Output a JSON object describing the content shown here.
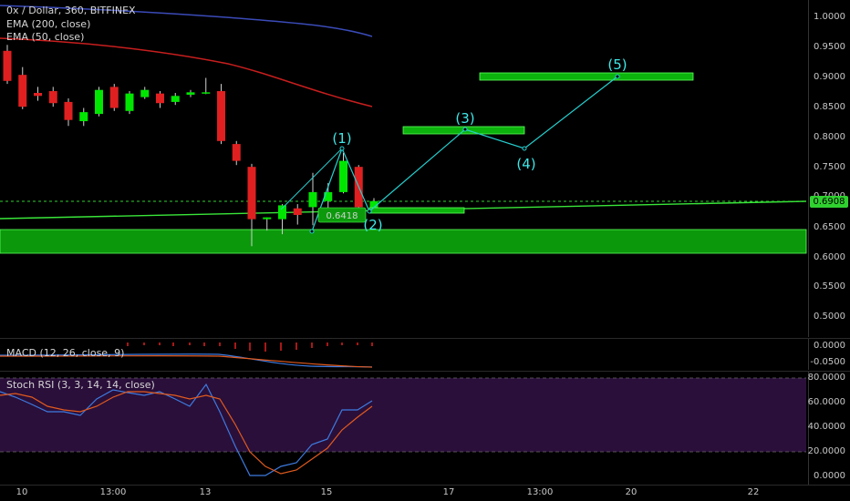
{
  "header": {
    "symbol_line": "0x / Dollar, 360, BITFINEX",
    "ema200_label": "EMA (200, close)",
    "ema50_label": "EMA (50, close)"
  },
  "price_axis": {
    "ticks": [
      "1.0000",
      "0.9500",
      "0.9000",
      "0.8500",
      "0.8000",
      "0.7500",
      "0.7000",
      "0.6500",
      "0.6000",
      "0.5500",
      "0.5000"
    ],
    "current_price": "0.6908"
  },
  "macd": {
    "label": "MACD (12, 26, close, 9)",
    "ticks": [
      "0.0000",
      "-0.0500"
    ]
  },
  "stoch": {
    "label": "Stoch RSI (3, 3, 14, 14, close)",
    "ticks": [
      "80.0000",
      "60.0000",
      "40.0000",
      "20.0000",
      "0.0000"
    ]
  },
  "time_axis": {
    "ticks": [
      "10",
      "13:00",
      "13",
      "15",
      "17",
      "13:00",
      "20",
      "22"
    ]
  },
  "annotations": {
    "wave_labels": [
      "(1)",
      "(2)",
      "(3)",
      "(4)",
      "(5)"
    ],
    "price_tag": "0.6418"
  },
  "colors": {
    "background": "#000000",
    "bull": "#00e600",
    "bear": "#e02020",
    "zone_fill": "#0db30d",
    "wave_line": "#26d0d0",
    "ema200": "#3a4bb8",
    "ema50": "#c81e1e",
    "trendline": "#39e639",
    "rsi_pane_bg": "#2a0f3a",
    "stoch_k": "#3d7be0",
    "stoch_d": "#e05a1e"
  },
  "chart_data": {
    "type": "candlestick",
    "title": "0x / Dollar, 360, BITFINEX",
    "ylim": [
      0.47,
      1.025
    ],
    "x_labels": [
      "10",
      "13:00",
      "13",
      "15",
      "17",
      "13:00",
      "20",
      "22"
    ],
    "candles": [
      {
        "o": 0.945,
        "h": 0.955,
        "l": 0.89,
        "c": 0.895
      },
      {
        "o": 0.905,
        "h": 0.918,
        "l": 0.848,
        "c": 0.852
      },
      {
        "o": 0.875,
        "h": 0.885,
        "l": 0.862,
        "c": 0.87
      },
      {
        "o": 0.878,
        "h": 0.885,
        "l": 0.852,
        "c": 0.858
      },
      {
        "o": 0.86,
        "h": 0.866,
        "l": 0.82,
        "c": 0.83
      },
      {
        "o": 0.828,
        "h": 0.85,
        "l": 0.82,
        "c": 0.843
      },
      {
        "o": 0.84,
        "h": 0.885,
        "l": 0.836,
        "c": 0.88
      },
      {
        "o": 0.885,
        "h": 0.89,
        "l": 0.845,
        "c": 0.85
      },
      {
        "o": 0.845,
        "h": 0.878,
        "l": 0.84,
        "c": 0.874
      },
      {
        "o": 0.868,
        "h": 0.885,
        "l": 0.865,
        "c": 0.88
      },
      {
        "o": 0.874,
        "h": 0.878,
        "l": 0.85,
        "c": 0.858
      },
      {
        "o": 0.86,
        "h": 0.875,
        "l": 0.855,
        "c": 0.87
      },
      {
        "o": 0.872,
        "h": 0.88,
        "l": 0.868,
        "c": 0.876
      },
      {
        "o": 0.876,
        "h": 0.9,
        "l": 0.873,
        "c": 0.876
      },
      {
        "o": 0.878,
        "h": 0.89,
        "l": 0.79,
        "c": 0.795
      },
      {
        "o": 0.79,
        "h": 0.795,
        "l": 0.755,
        "c": 0.762
      },
      {
        "o": 0.752,
        "h": 0.757,
        "l": 0.62,
        "c": 0.665
      },
      {
        "o": 0.665,
        "h": 0.668,
        "l": 0.646,
        "c": 0.668
      },
      {
        "o": 0.665,
        "h": 0.69,
        "l": 0.64,
        "c": 0.688
      },
      {
        "o": 0.683,
        "h": 0.69,
        "l": 0.656,
        "c": 0.672
      },
      {
        "o": 0.685,
        "h": 0.742,
        "l": 0.655,
        "c": 0.71
      },
      {
        "o": 0.695,
        "h": 0.725,
        "l": 0.68,
        "c": 0.71
      },
      {
        "o": 0.71,
        "h": 0.775,
        "l": 0.708,
        "c": 0.762
      },
      {
        "o": 0.752,
        "h": 0.755,
        "l": 0.66,
        "c": 0.685
      },
      {
        "o": 0.682,
        "h": 0.7,
        "l": 0.676,
        "c": 0.695
      }
    ],
    "zones": [
      {
        "low": 0.605,
        "high": 0.645
      },
      {
        "low": 0.6735,
        "high": 0.6815
      },
      {
        "low": 0.807,
        "high": 0.8155
      },
      {
        "low": 0.896,
        "high": 0.9075
      }
    ],
    "wave_points": [
      {
        "label": "(1)",
        "price": 0.775
      },
      {
        "label": "(2)",
        "price": 0.681
      },
      {
        "label": "(3)",
        "price": 0.811
      },
      {
        "label": "(4)",
        "price": 0.776
      },
      {
        "label": "(5)",
        "price": 0.903
      }
    ],
    "current_price": 0.6908
  }
}
